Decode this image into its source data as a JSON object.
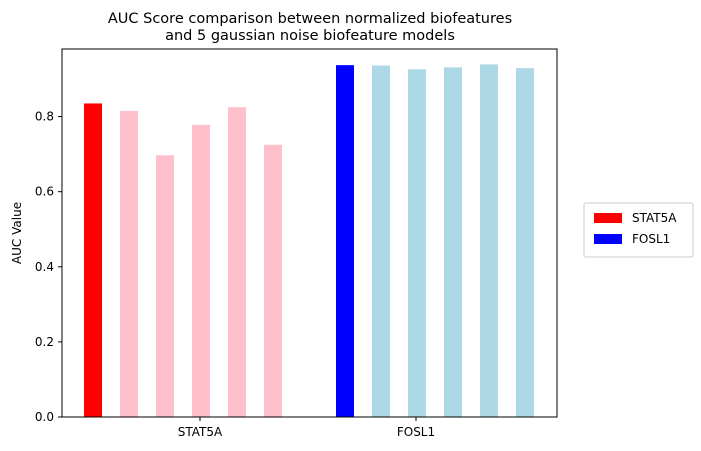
{
  "chart_data": {
    "type": "bar",
    "title": "AUC Score comparison between normalized biofeatures\nand 5 gaussian noise biofeature models",
    "xlabel": "",
    "ylabel": "AUC Value",
    "ylim": [
      0,
      0.98
    ],
    "yticks": [
      "0.0",
      "0.2",
      "0.4",
      "0.6",
      "0.8"
    ],
    "categories": [
      "STAT5A",
      "FOSL1"
    ],
    "groups": [
      {
        "category": "STAT5A",
        "main": {
          "label": "normalized biofeatures",
          "value": 0.835,
          "color": "#ff0000"
        },
        "noise": {
          "label": "gaussian noise",
          "values": [
            0.815,
            0.697,
            0.778,
            0.825,
            0.725
          ],
          "color": "#ffc0cb"
        }
      },
      {
        "category": "FOSL1",
        "main": {
          "label": "normalized biofeatures",
          "value": 0.937,
          "color": "#0000ff"
        },
        "noise": {
          "label": "gaussian noise",
          "values": [
            0.936,
            0.926,
            0.931,
            0.939,
            0.929
          ],
          "color": "#add8e6"
        }
      }
    ],
    "legend": {
      "placement": "center-right-outside",
      "entries": [
        {
          "label": "STAT5A",
          "color": "#ff0000"
        },
        {
          "label": "FOSL1",
          "color": "#0000ff"
        }
      ]
    },
    "grid": false
  }
}
